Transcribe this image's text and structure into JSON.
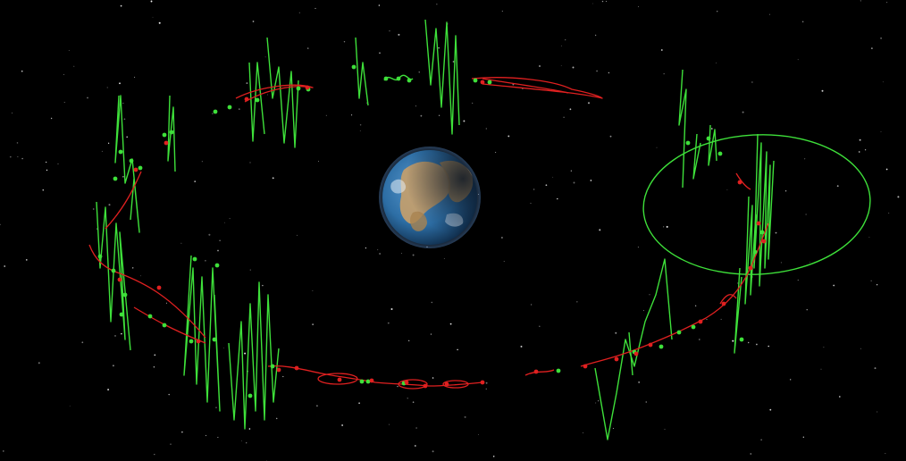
{
  "scene": {
    "background_color": "#000000",
    "star_color": "#ffffff",
    "earth": {
      "ocean_color": "#2d6ea5",
      "land_color": "#c8a06a",
      "night_side_color": "#0a1422",
      "cloud_color": "#e6eef6"
    },
    "track_colors": {
      "green": "#3ee03a",
      "red": "#e02020"
    },
    "labels": []
  }
}
